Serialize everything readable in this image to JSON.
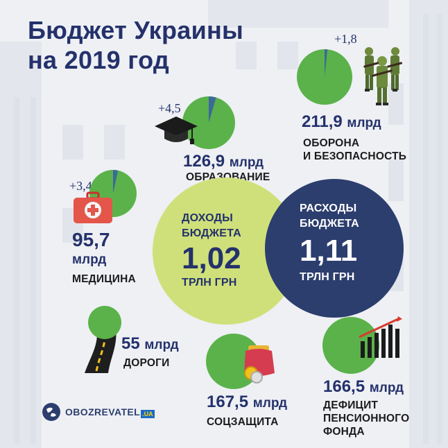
{
  "title": {
    "line1": "Бюджет Украины",
    "line2": "на 2019 год"
  },
  "colors": {
    "navy": "#2c3e6e",
    "green": "#5bb24a",
    "lime": "#cfe07a",
    "blue_slice": "#3a6a9a"
  },
  "defense": {
    "delta": "+1,8",
    "amount": "211,9",
    "unit": "млрд",
    "label_line1": "ОБОРОНА",
    "label_line2": "И БЕЗОПАСНОСТЬ",
    "icon": "soldiers-icon"
  },
  "education": {
    "delta": "+4,5",
    "amount": "126,9",
    "unit": "млрд",
    "label": "ОБРАЗОВАНИЕ",
    "icon": "graduation-cap-icon"
  },
  "medicine": {
    "delta": "+3,4",
    "amount": "95,7",
    "unit": "млрд",
    "label": "МЕДИЦИНА",
    "icon": "first-aid-kit-icon"
  },
  "income": {
    "line1": "ДОХОДЫ",
    "line2": "БЮДЖЕТА",
    "value": "1,02",
    "unit": "ТРЛН ГРН"
  },
  "expenses": {
    "line1": "РАСХОДЫ",
    "line2": "БЮДЖЕТА",
    "value": "1,11",
    "unit": "ТРЛН ГРН"
  },
  "roads": {
    "amount": "55",
    "unit": "млрд",
    "label": "ДОРОГИ",
    "icon": "road-icon"
  },
  "social": {
    "amount": "167,5",
    "unit": "млрд",
    "label": "СОЦЗАЩИТА",
    "icon": "wallet-coins-icon"
  },
  "pension": {
    "amount": "166,5",
    "unit": "млрд",
    "label_line1": "ДЕФИЦИТ",
    "label_line2": "ПЕНСИОННОГО",
    "label_line3": "ФОНДА",
    "icon": "deficit-chart-icon"
  },
  "brand": {
    "name": "OBOZREVATEL",
    "suffix": ".UA"
  }
}
